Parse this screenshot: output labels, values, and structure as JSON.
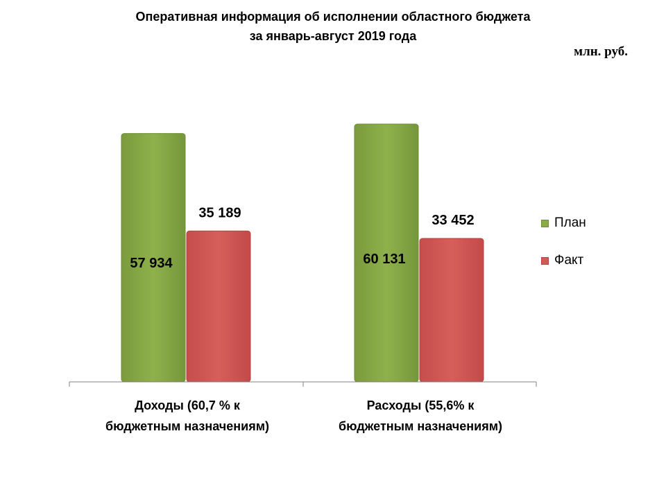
{
  "title": {
    "line1": "Оперативная информация об исполнении областного бюджета",
    "line2": "за январь-август 2019 года"
  },
  "unit": "млн. руб.",
  "colors": {
    "plan": "#8aab48",
    "plan_dark": "#6e8d34",
    "fact": "#d35a58",
    "fact_dark": "#b44341",
    "axis": "#808080"
  },
  "categories": [
    {
      "line1": "Доходы (60,7 % к",
      "line2": "бюджетным назначениям)"
    },
    {
      "line1": "Расходы (55,6% к",
      "line2": "бюджетным назначениям)"
    }
  ],
  "legend": {
    "plan": "План",
    "fact": "Факт"
  },
  "chart_data": {
    "type": "bar",
    "categories": [
      "Доходы (60,7 % к бюджетным назначениям)",
      "Расходы (55,6% к бюджетным назначениям)"
    ],
    "series": [
      {
        "name": "План",
        "values": [
          57934,
          60131
        ],
        "labels": [
          "57 934",
          "60 131"
        ]
      },
      {
        "name": "Факт",
        "values": [
          35189,
          33452
        ],
        "labels": [
          "35 189",
          "33 452"
        ]
      }
    ],
    "title": "Оперативная информация об исполнении областного бюджета за январь-август 2019 года",
    "ylabel": "млн. руб.",
    "ylim": [
      0,
      60131
    ],
    "grid": false,
    "legend": "right"
  }
}
